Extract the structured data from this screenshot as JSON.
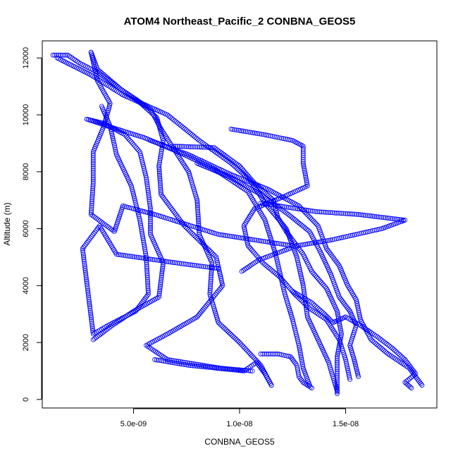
{
  "chart_data": {
    "type": "scatter",
    "title": "ATOM4 Northeast_Pacific_2 CONBNA_GEOS5",
    "xlabel": "CONBNA_GEOS5",
    "ylabel": "Altitude (m)",
    "xlim": [
      7e-10,
      1.93e-08
    ],
    "ylim": [
      -300,
      12600
    ],
    "x_ticks": [
      5e-09,
      1e-08,
      1.5e-08
    ],
    "x_tick_labels": [
      "5.0e-09",
      "1.0e-08",
      "1.5e-08"
    ],
    "y_ticks": [
      0,
      2000,
      4000,
      6000,
      8000,
      10000,
      12000
    ],
    "y_tick_labels": [
      "0",
      "2000",
      "4000",
      "6000",
      "8000",
      "10000",
      "12000"
    ],
    "grid": false,
    "marker": "open-circle",
    "color": "#0000ff",
    "profiles": [
      [
        [
          1.2e-09,
          12100
        ],
        [
          1.9e-09,
          12100
        ],
        [
          2.5e-09,
          11800
        ],
        [
          3.3e-09,
          11500
        ],
        [
          4.4e-09,
          10900
        ],
        [
          5.2e-09,
          10500
        ],
        [
          6.1e-09,
          9900
        ],
        [
          6.4e-09,
          9100
        ],
        [
          6.2e-09,
          8200
        ],
        [
          6.3e-09,
          7200
        ],
        [
          7.4e-09,
          6100
        ],
        [
          8.9e-09,
          5000
        ],
        [
          9.2e-09,
          4000
        ],
        [
          8e-09,
          2900
        ],
        [
          6.6e-09,
          2300
        ],
        [
          5.6e-09,
          1900
        ],
        [
          6.6e-09,
          1400
        ],
        [
          9.1e-09,
          1100
        ],
        [
          1.06e-08,
          1000
        ]
      ],
      [
        [
          3e-09,
          12200
        ],
        [
          3.3e-09,
          11600
        ],
        [
          4.4e-09,
          10900
        ],
        [
          5.8e-09,
          10200
        ],
        [
          6.3e-09,
          9500
        ],
        [
          6.9e-09,
          8800
        ],
        [
          7.6e-09,
          8000
        ],
        [
          8e-09,
          7000
        ],
        [
          8.1e-09,
          5800
        ],
        [
          8.7e-09,
          4800
        ],
        [
          8.6e-09,
          3700
        ],
        [
          9e-09,
          2700
        ],
        [
          1e-08,
          2000
        ],
        [
          1.1e-08,
          1200
        ],
        [
          1.15e-08,
          500
        ]
      ],
      [
        [
          2.8e-09,
          9850
        ],
        [
          3.6e-09,
          9700
        ],
        [
          4.6e-09,
          9300
        ],
        [
          5.3e-09,
          8700
        ],
        [
          5.6e-09,
          7800
        ],
        [
          5.8e-09,
          6700
        ],
        [
          5.8e-09,
          5800
        ],
        [
          6.4e-09,
          4800
        ],
        [
          6.2e-09,
          3600
        ],
        [
          5e-09,
          3100
        ],
        [
          4e-09,
          2600
        ],
        [
          3.1e-09,
          2100
        ]
      ],
      [
        [
          3e-09,
          12200
        ],
        [
          3.3e-09,
          11200
        ],
        [
          3.9e-09,
          10400
        ],
        [
          3.6e-09,
          9600
        ],
        [
          3.1e-09,
          8700
        ],
        [
          3.1e-09,
          7600
        ],
        [
          3e-09,
          6500
        ],
        [
          4.1e-09,
          5900
        ],
        [
          4.5e-09,
          6800
        ],
        [
          6e-09,
          6500
        ],
        [
          9e-09,
          5800
        ],
        [
          1.25e-08,
          5400
        ]
      ],
      [
        [
          1.4e-09,
          12000
        ],
        [
          3e-09,
          11400
        ],
        [
          4.5e-09,
          10700
        ],
        [
          6.6e-09,
          10000
        ],
        [
          8.1e-09,
          9100
        ],
        [
          9.6e-09,
          8300
        ],
        [
          1.05e-08,
          7700
        ],
        [
          1.12e-08,
          6900
        ],
        [
          1.22e-08,
          6000
        ],
        [
          1.27e-08,
          5000
        ],
        [
          1.3e-08,
          4000
        ],
        [
          1.32e-08,
          2900
        ],
        [
          1.37e-08,
          2100
        ],
        [
          1.42e-08,
          1300
        ],
        [
          1.46e-08,
          300
        ]
      ],
      [
        [
          2.8e-09,
          9850
        ],
        [
          3.8e-09,
          9600
        ],
        [
          5.5e-09,
          9200
        ],
        [
          7.1e-09,
          8700
        ],
        [
          8.8e-09,
          8100
        ],
        [
          1.04e-08,
          7300
        ],
        [
          1.12e-08,
          6300
        ],
        [
          1.17e-08,
          5100
        ],
        [
          1.21e-08,
          3800
        ],
        [
          1.25e-08,
          2800
        ],
        [
          1.28e-08,
          1900
        ],
        [
          1.3e-08,
          1100
        ],
        [
          1.33e-08,
          500
        ]
      ],
      [
        [
          3.5e-09,
          10300
        ],
        [
          3.9e-09,
          9600
        ],
        [
          4.2e-09,
          8600
        ],
        [
          4.9e-09,
          7500
        ],
        [
          5.3e-09,
          6300
        ],
        [
          5.6e-09,
          5000
        ],
        [
          5.7e-09,
          3700
        ],
        [
          5.1e-09,
          3100
        ],
        [
          3.8e-09,
          2600
        ],
        [
          3.1e-09,
          2300
        ],
        [
          2.6e-09,
          5300
        ],
        [
          3.4e-09,
          6100
        ],
        [
          4.2e-09,
          5100
        ],
        [
          7e-09,
          4800
        ],
        [
          9e-09,
          4600
        ]
      ],
      [
        [
          9.6e-09,
          9500
        ],
        [
          1.12e-08,
          9300
        ],
        [
          1.25e-08,
          9100
        ],
        [
          1.3e-08,
          8900
        ],
        [
          1.3e-08,
          8300
        ],
        [
          1.32e-08,
          7500
        ],
        [
          1.2e-08,
          7100
        ],
        [
          1.07e-08,
          6700
        ],
        [
          1.02e-08,
          6100
        ],
        [
          1.04e-08,
          5400
        ],
        [
          1.11e-08,
          4800
        ],
        [
          1.19e-08,
          4300
        ],
        [
          1.26e-08,
          3700
        ],
        [
          1.33e-08,
          3200
        ],
        [
          1.41e-08,
          2800
        ],
        [
          1.47e-08,
          2100
        ],
        [
          1.5e-08,
          1400
        ],
        [
          1.52e-08,
          700
        ]
      ],
      [
        [
          6.9e-09,
          8900
        ],
        [
          8.8e-09,
          8850
        ],
        [
          1e-08,
          8200
        ],
        [
          1.07e-08,
          7600
        ],
        [
          1.16e-08,
          7000
        ],
        [
          1.18e-08,
          6400
        ],
        [
          1.22e-08,
          5900
        ],
        [
          1.3e-08,
          5100
        ],
        [
          1.34e-08,
          4500
        ],
        [
          1.41e-08,
          3900
        ],
        [
          1.46e-08,
          3100
        ],
        [
          1.48e-08,
          2300
        ],
        [
          1.46e-08,
          1500
        ],
        [
          1.46e-08,
          200
        ]
      ],
      [
        [
          5.8e-09,
          9100
        ],
        [
          7.6e-09,
          8600
        ],
        [
          9.6e-09,
          7900
        ],
        [
          1.13e-08,
          7400
        ],
        [
          1.28e-08,
          6800
        ],
        [
          1.37e-08,
          6100
        ],
        [
          1.41e-08,
          5300
        ],
        [
          1.47e-08,
          4700
        ],
        [
          1.51e-08,
          4000
        ],
        [
          1.55e-08,
          3500
        ],
        [
          1.57e-08,
          2800
        ],
        [
          1.62e-08,
          2100
        ],
        [
          1.7e-08,
          1600
        ],
        [
          1.8e-08,
          1100
        ],
        [
          1.86e-08,
          500
        ]
      ],
      [
        [
          8e-09,
          8300
        ],
        [
          9.6e-09,
          7800
        ],
        [
          1.1e-08,
          7200
        ],
        [
          1.23e-08,
          6500
        ],
        [
          1.33e-08,
          5900
        ],
        [
          1.38e-08,
          5200
        ],
        [
          1.43e-08,
          4400
        ],
        [
          1.47e-08,
          3600
        ],
        [
          1.52e-08,
          3100
        ],
        [
          1.55e-08,
          2600
        ],
        [
          1.52e-08,
          1900
        ],
        [
          1.54e-08,
          1400
        ],
        [
          1.56e-08,
          800
        ]
      ],
      [
        [
          1.1e-08,
          6900
        ],
        [
          1.36e-08,
          6600
        ],
        [
          1.56e-08,
          6500
        ],
        [
          1.78e-08,
          6300
        ],
        [
          1.67e-08,
          6000
        ],
        [
          1.43e-08,
          5600
        ],
        [
          1.27e-08,
          5400
        ],
        [
          1.09e-08,
          4900
        ],
        [
          1.01e-08,
          4500
        ]
      ],
      [
        [
          1.25e-08,
          3800
        ],
        [
          1.34e-08,
          3400
        ],
        [
          1.4e-08,
          3000
        ],
        [
          1.44e-08,
          2700
        ],
        [
          1.5e-08,
          2900
        ],
        [
          1.57e-08,
          2600
        ],
        [
          1.65e-08,
          2200
        ],
        [
          1.72e-08,
          1800
        ],
        [
          1.78e-08,
          1400
        ],
        [
          1.83e-08,
          900
        ],
        [
          1.78e-08,
          600
        ],
        [
          1.81e-08,
          400
        ]
      ],
      [
        [
          1.1e-08,
          1600
        ],
        [
          1.18e-08,
          1600
        ],
        [
          1.24e-08,
          1500
        ],
        [
          1.27e-08,
          1200
        ],
        [
          1.28e-08,
          800
        ],
        [
          1.3e-08,
          600
        ],
        [
          1.34e-08,
          400
        ]
      ],
      [
        [
          6e-09,
          1400
        ],
        [
          7.6e-09,
          1200
        ],
        [
          8.9e-09,
          1100
        ],
        [
          1.02e-08,
          1000
        ],
        [
          1.08e-08,
          1300
        ],
        [
          1.12e-08,
          900
        ],
        [
          1.15e-08,
          500
        ]
      ]
    ]
  }
}
